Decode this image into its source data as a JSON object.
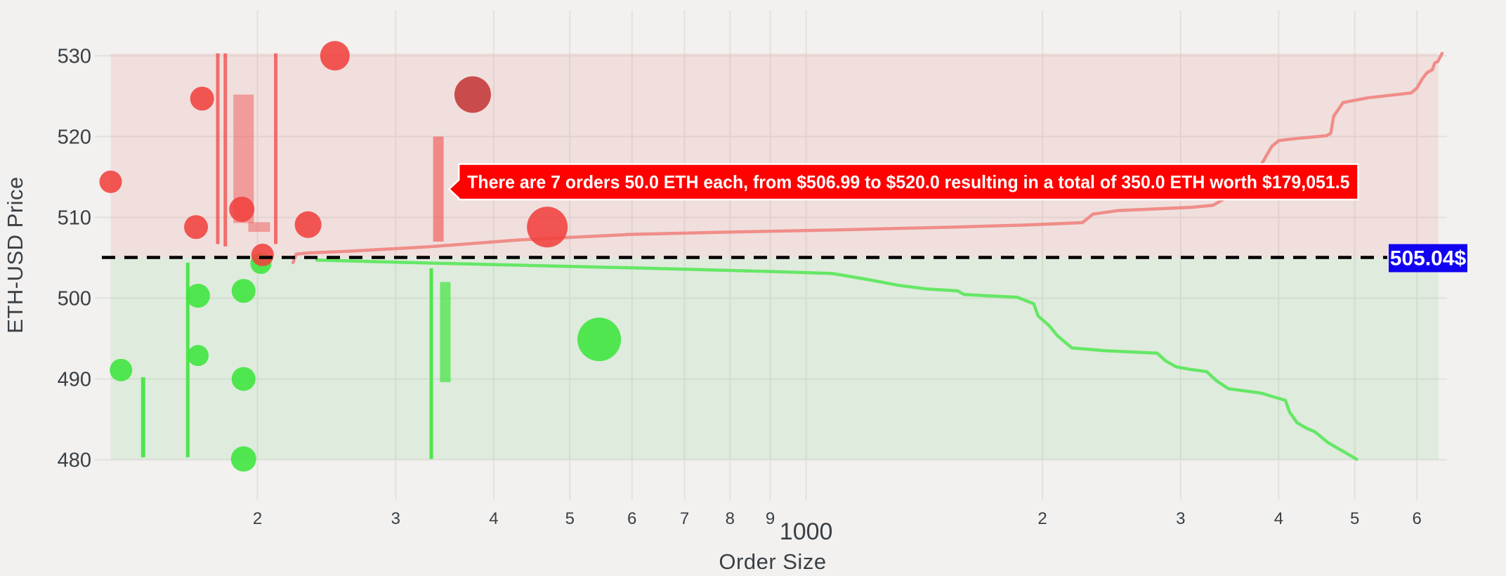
{
  "colors": {
    "page_bg": "#f2f1ef",
    "grid": "#e3e1de",
    "ask_red": "#f0413e",
    "ask_red_muted": "#c94b4b",
    "ask_line": "#f08d89",
    "bid_green": "#3fe53f",
    "bid_line": "#66e766",
    "ask_band": "rgba(229,70,65,0.10)",
    "bid_band": "rgba(60,190,70,0.10)",
    "annotation_bg": "#fe0100",
    "annotation_text": "#ffffff",
    "mid_label_bg": "#1102f0",
    "mid_label_text": "#ffffff",
    "mid_line": "#000000",
    "tick_text": "#3a3f44"
  },
  "chart_data": {
    "type": "scatter",
    "title": "",
    "xlabel": "Order Size",
    "ylabel": "ETH-USD Price",
    "x_scale": "log",
    "x_range": [
      128,
      6500
    ],
    "y_range": [
      477,
      535.6
    ],
    "grid": true,
    "legend": "none",
    "mid_price": 505.04,
    "mid_price_label": "505.04$",
    "annotation": {
      "text": "There are 7 orders 50.0 ETH each, from $506.99 to $520.0 resulting in a total of 350.0 ETH worth $179,051.5",
      "points_to": {
        "size": 345,
        "price": 513.5
      },
      "box_price_top": 516.6,
      "box_price_bottom": 512.2,
      "box_size_right": 5050
    },
    "regions": {
      "ask": {
        "price_from": 505.04,
        "price_to": 530.3
      },
      "bid": {
        "price_from": 480.0,
        "price_to": 505.04
      },
      "size_from": 130,
      "size_to": 6390
    },
    "x_ticks": [
      {
        "value": 200,
        "label": "2",
        "major": false
      },
      {
        "value": 300,
        "label": "3",
        "major": false
      },
      {
        "value": 400,
        "label": "4",
        "major": false
      },
      {
        "value": 500,
        "label": "5",
        "major": false
      },
      {
        "value": 600,
        "label": "6",
        "major": false
      },
      {
        "value": 700,
        "label": "7",
        "major": false
      },
      {
        "value": 800,
        "label": "8",
        "major": false
      },
      {
        "value": 900,
        "label": "9",
        "major": false
      },
      {
        "value": 1000,
        "label": "1000",
        "major": true
      },
      {
        "value": 2000,
        "label": "2",
        "major": false
      },
      {
        "value": 3000,
        "label": "3",
        "major": false
      },
      {
        "value": 4000,
        "label": "4",
        "major": false
      },
      {
        "value": 5000,
        "label": "5",
        "major": false
      },
      {
        "value": 6000,
        "label": "6",
        "major": false
      }
    ],
    "y_ticks": [
      {
        "value": 480,
        "label": "480"
      },
      {
        "value": 490,
        "label": "490"
      },
      {
        "value": 500,
        "label": "500"
      },
      {
        "value": 510,
        "label": "510"
      },
      {
        "value": 520,
        "label": "520"
      },
      {
        "value": 530,
        "label": "530"
      }
    ],
    "ask_bubbles": [
      {
        "size": 130,
        "price": 514.4,
        "r": 16
      },
      {
        "size": 170,
        "price": 524.7,
        "r": 17
      },
      {
        "size": 167,
        "price": 508.8,
        "r": 17
      },
      {
        "size": 191,
        "price": 511.0,
        "r": 18
      },
      {
        "size": 203,
        "price": 505.35,
        "r": 16
      },
      {
        "size": 232,
        "price": 509.1,
        "r": 19
      },
      {
        "size": 251,
        "price": 530.0,
        "r": 21
      },
      {
        "size": 376,
        "price": 525.2,
        "r": 26,
        "muted": true
      },
      {
        "size": 468,
        "price": 508.8,
        "r": 29
      }
    ],
    "bid_bubbles": [
      {
        "size": 134,
        "price": 491.1,
        "r": 16
      },
      {
        "size": 168,
        "price": 500.3,
        "r": 17
      },
      {
        "size": 168,
        "price": 492.9,
        "r": 15
      },
      {
        "size": 192,
        "price": 500.9,
        "r": 17
      },
      {
        "size": 192,
        "price": 490.0,
        "r": 17
      },
      {
        "size": 192,
        "price": 480.1,
        "r": 18
      },
      {
        "size": 202,
        "price": 504.3,
        "r": 15
      },
      {
        "size": 545,
        "price": 494.9,
        "r": 31
      }
    ],
    "ask_bars": [
      {
        "size": 178,
        "price_from": 506.7,
        "price_to": 530.3,
        "w": 5,
        "alpha": 0.72
      },
      {
        "size": 182,
        "price_from": 506.4,
        "price_to": 530.3,
        "w": 5,
        "alpha": 0.72
      },
      {
        "size": 192,
        "price_from": 509.3,
        "price_to": 525.2,
        "w": 29,
        "alpha": 0.42
      },
      {
        "size": 201,
        "price_from": 508.2,
        "price_to": 509.4,
        "w": 31,
        "alpha": 0.42
      },
      {
        "size": 211,
        "price_from": 506.7,
        "price_to": 530.3,
        "w": 5,
        "alpha": 0.72
      },
      {
        "size": 340,
        "price_from": 507.0,
        "price_to": 520.0,
        "w": 15,
        "alpha": 0.55
      }
    ],
    "bid_bars": [
      {
        "size": 143,
        "price_from": 480.3,
        "price_to": 490.2,
        "w": 6,
        "alpha": 0.9
      },
      {
        "size": 163,
        "price_from": 480.3,
        "price_to": 504.4,
        "w": 5,
        "alpha": 0.9
      },
      {
        "size": 333,
        "price_from": 480.1,
        "price_to": 503.7,
        "w": 5,
        "alpha": 0.9
      },
      {
        "size": 347,
        "price_from": 489.6,
        "price_to": 502.0,
        "w": 15,
        "alpha": 0.7
      }
    ],
    "ask_line": [
      [
        222,
        504.4
      ],
      [
        224,
        505.45
      ],
      [
        232,
        505.6
      ],
      [
        260,
        505.8
      ],
      [
        330,
        506.35
      ],
      [
        430,
        507.2
      ],
      [
        600,
        507.9
      ],
      [
        820,
        508.2
      ],
      [
        1100,
        508.45
      ],
      [
        1550,
        508.8
      ],
      [
        1900,
        509.05
      ],
      [
        2250,
        509.35
      ],
      [
        2320,
        510.4
      ],
      [
        2500,
        510.85
      ],
      [
        3100,
        511.25
      ],
      [
        3300,
        511.5
      ],
      [
        3600,
        513.6
      ],
      [
        3720,
        515.2
      ],
      [
        3820,
        516.9
      ],
      [
        3920,
        518.8
      ],
      [
        4000,
        519.5
      ],
      [
        4250,
        519.8
      ],
      [
        4600,
        520.1
      ],
      [
        4660,
        520.4
      ],
      [
        4700,
        522.5
      ],
      [
        4830,
        524.2
      ],
      [
        5200,
        524.8
      ],
      [
        5900,
        525.4
      ],
      [
        6000,
        526.0
      ],
      [
        6100,
        527.2
      ],
      [
        6180,
        527.9
      ],
      [
        6280,
        528.3
      ],
      [
        6320,
        529.1
      ],
      [
        6380,
        529.3
      ],
      [
        6460,
        530.3
      ]
    ],
    "bid_line": [
      [
        238,
        504.72
      ],
      [
        300,
        504.45
      ],
      [
        420,
        504.1
      ],
      [
        600,
        503.75
      ],
      [
        900,
        503.3
      ],
      [
        1080,
        503.05
      ],
      [
        1200,
        502.3
      ],
      [
        1310,
        501.6
      ],
      [
        1420,
        501.15
      ],
      [
        1560,
        500.9
      ],
      [
        1590,
        500.45
      ],
      [
        1860,
        500.1
      ],
      [
        1950,
        499.3
      ],
      [
        1975,
        497.8
      ],
      [
        2040,
        496.6
      ],
      [
        2090,
        495.35
      ],
      [
        2180,
        493.85
      ],
      [
        2400,
        493.5
      ],
      [
        2800,
        493.2
      ],
      [
        2870,
        492.25
      ],
      [
        2960,
        491.5
      ],
      [
        3080,
        491.2
      ],
      [
        3240,
        490.9
      ],
      [
        3330,
        489.8
      ],
      [
        3450,
        488.8
      ],
      [
        3800,
        488.25
      ],
      [
        4080,
        487.35
      ],
      [
        4130,
        485.9
      ],
      [
        4220,
        484.6
      ],
      [
        4330,
        483.95
      ],
      [
        4450,
        483.45
      ],
      [
        4620,
        482.15
      ],
      [
        4750,
        481.45
      ],
      [
        4850,
        480.95
      ],
      [
        4950,
        480.45
      ],
      [
        5030,
        480.05
      ]
    ]
  },
  "axes": {
    "x_title": "Order Size",
    "y_title": "ETH-USD Price"
  }
}
